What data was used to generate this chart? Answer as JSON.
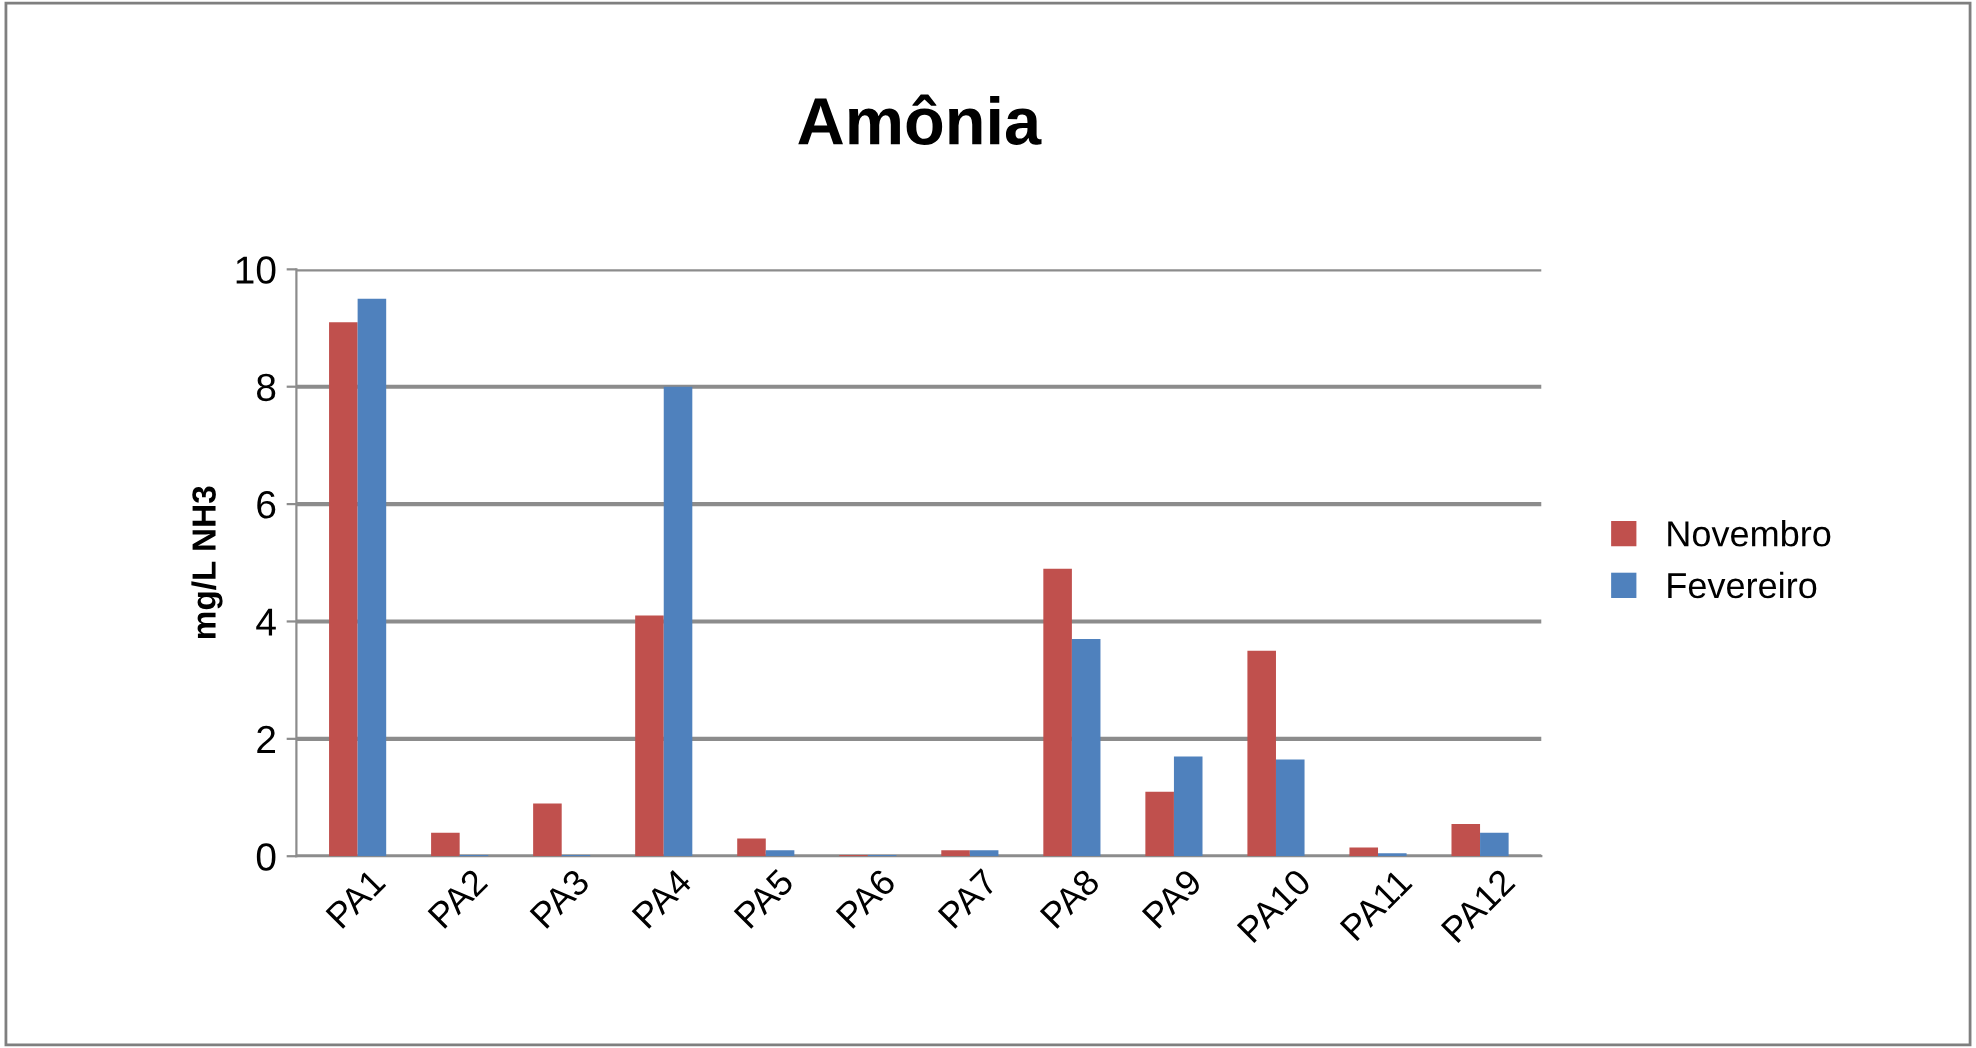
{
  "chart_data": {
    "type": "bar",
    "title": "Amônia",
    "ylabel": "mg/L NH3",
    "categories": [
      "PA1",
      "PA2",
      "PA3",
      "PA4",
      "PA5",
      "PA6",
      "PA7",
      "PA8",
      "PA9",
      "PA10",
      "PA11",
      "PA12"
    ],
    "series": [
      {
        "name": "Novembro",
        "color": "#c0504d",
        "values": [
          9.1,
          0.4,
          0.9,
          4.1,
          0.3,
          0.02,
          0.1,
          4.9,
          1.1,
          3.5,
          0.15,
          0.55
        ]
      },
      {
        "name": "Fevereiro",
        "color": "#4f81bd",
        "values": [
          9.5,
          0.02,
          0.02,
          8.0,
          0.1,
          0.02,
          0.1,
          3.7,
          1.7,
          1.65,
          0.05,
          0.4
        ]
      }
    ],
    "ylim": [
      0,
      10
    ],
    "yticks": [
      0,
      2,
      4,
      6,
      8,
      10
    ],
    "grid": "y",
    "legend": "right"
  }
}
